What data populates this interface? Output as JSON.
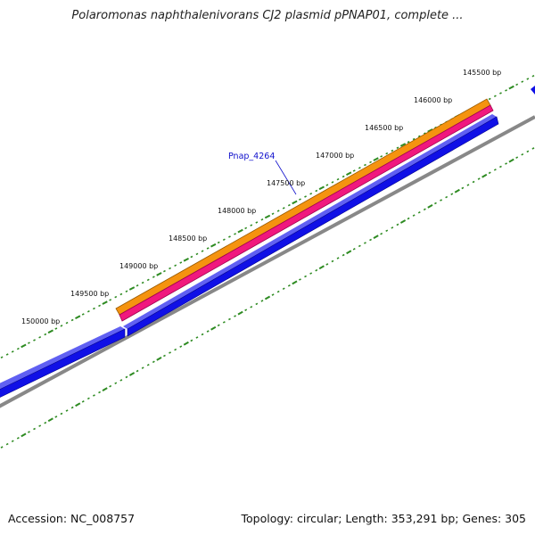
{
  "title": "Polaromonas naphthalenivorans CJ2 plasmid pPNAP01, complete ...",
  "footer": {
    "accession": "Accession: NC_008757",
    "summary": "Topology: circular; Length: 353,291 bp; Genes: 305"
  },
  "colors": {
    "tick": "#2e8b22",
    "backbone": "#888888",
    "orange_feature": "#f5930f",
    "pink_feature": "#f0187e",
    "blue_feature": "#1010e6",
    "gene_label": "#1010cc"
  },
  "scale_labels": [
    "145500 bp",
    "146000 bp",
    "146500 bp",
    "147000 bp",
    "147500 bp",
    "148000 bp",
    "148500 bp",
    "149000 bp",
    "149500 bp",
    "150000 bp"
  ],
  "gene_label": "Pnap_4264"
}
